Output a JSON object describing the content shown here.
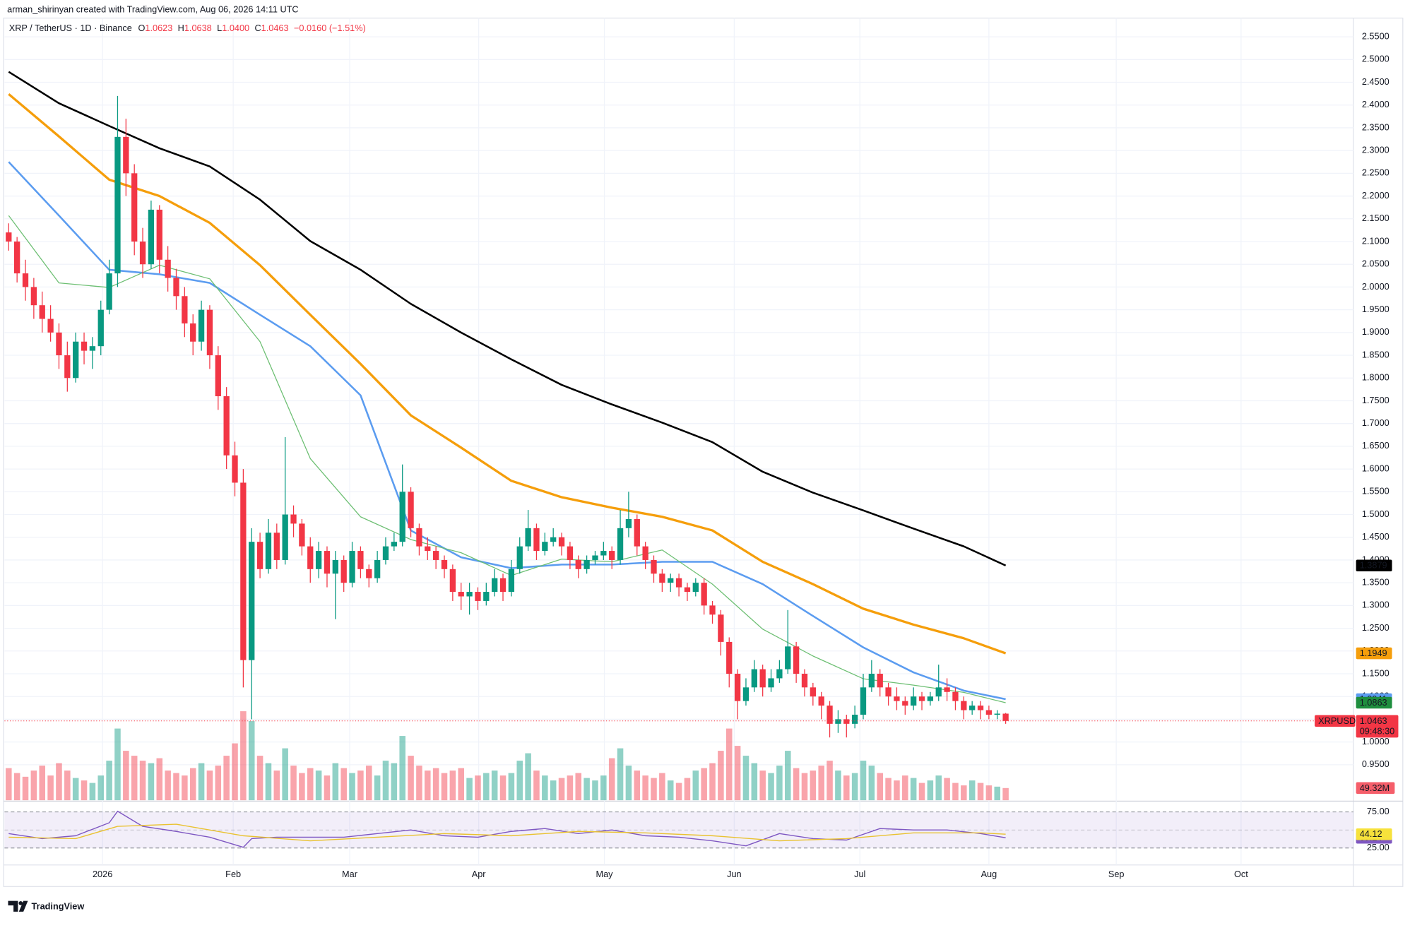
{
  "header": {
    "attribution": "arman_shirinyan created with TradingView.com, Aug 06, 2026 14:11 UTC",
    "symbol": "XRP / TetherUS · 1D · Binance",
    "ohlc": [
      {
        "key": "O",
        "text": "1.0623"
      },
      {
        "key": "H",
        "text": "1.0638"
      },
      {
        "key": "L",
        "text": "1.0400"
      },
      {
        "key": "C",
        "text": "1.0463"
      }
    ],
    "change": "−0.0160 (−1.51%)"
  },
  "footer": {
    "logo": "TradingView"
  },
  "chart_data": {
    "type": "candlestick",
    "candles": [
      [
        2.12,
        2.14,
        2.08,
        2.1
      ],
      [
        2.1,
        2.11,
        2.01,
        2.03
      ],
      [
        2.03,
        2.06,
        1.97,
        2.0
      ],
      [
        2.0,
        2.02,
        1.93,
        1.96
      ],
      [
        1.96,
        1.99,
        1.9,
        1.93
      ],
      [
        1.93,
        1.96,
        1.88,
        1.9
      ],
      [
        1.9,
        1.92,
        1.82,
        1.85
      ],
      [
        1.85,
        1.88,
        1.77,
        1.8
      ],
      [
        1.8,
        1.9,
        1.79,
        1.88
      ],
      [
        1.88,
        1.9,
        1.83,
        1.86
      ],
      [
        1.86,
        1.89,
        1.82,
        1.87
      ],
      [
        1.87,
        1.97,
        1.85,
        1.95
      ],
      [
        1.95,
        2.06,
        1.94,
        2.03
      ],
      [
        2.03,
        2.42,
        2.0,
        2.33
      ],
      [
        2.33,
        2.37,
        2.2,
        2.25
      ],
      [
        2.25,
        2.27,
        2.07,
        2.1
      ],
      [
        2.1,
        2.13,
        2.02,
        2.05
      ],
      [
        2.05,
        2.19,
        2.04,
        2.17
      ],
      [
        2.17,
        2.18,
        2.03,
        2.06
      ],
      [
        2.06,
        2.09,
        1.99,
        2.02
      ],
      [
        2.02,
        2.04,
        1.95,
        1.98
      ],
      [
        1.98,
        2.0,
        1.89,
        1.92
      ],
      [
        1.92,
        1.94,
        1.85,
        1.88
      ],
      [
        1.88,
        1.97,
        1.86,
        1.95
      ],
      [
        1.95,
        1.96,
        1.82,
        1.85
      ],
      [
        1.85,
        1.87,
        1.73,
        1.76
      ],
      [
        1.76,
        1.78,
        1.6,
        1.63
      ],
      [
        1.63,
        1.66,
        1.54,
        1.57
      ],
      [
        1.57,
        1.6,
        1.12,
        1.18
      ],
      [
        1.18,
        1.47,
        1.05,
        1.44
      ],
      [
        1.44,
        1.46,
        1.36,
        1.38
      ],
      [
        1.38,
        1.49,
        1.37,
        1.46
      ],
      [
        1.46,
        1.48,
        1.38,
        1.4
      ],
      [
        1.4,
        1.67,
        1.39,
        1.5
      ],
      [
        1.5,
        1.52,
        1.45,
        1.48
      ],
      [
        1.48,
        1.49,
        1.41,
        1.43
      ],
      [
        1.43,
        1.45,
        1.35,
        1.38
      ],
      [
        1.38,
        1.44,
        1.36,
        1.42
      ],
      [
        1.42,
        1.43,
        1.34,
        1.37
      ],
      [
        1.37,
        1.42,
        1.27,
        1.4
      ],
      [
        1.4,
        1.41,
        1.33,
        1.35
      ],
      [
        1.35,
        1.44,
        1.34,
        1.42
      ],
      [
        1.42,
        1.43,
        1.36,
        1.38
      ],
      [
        1.38,
        1.39,
        1.34,
        1.36
      ],
      [
        1.36,
        1.42,
        1.35,
        1.4
      ],
      [
        1.4,
        1.45,
        1.39,
        1.43
      ],
      [
        1.43,
        1.46,
        1.42,
        1.44
      ],
      [
        1.44,
        1.61,
        1.43,
        1.55
      ],
      [
        1.55,
        1.56,
        1.45,
        1.47
      ],
      [
        1.47,
        1.48,
        1.41,
        1.43
      ],
      [
        1.43,
        1.45,
        1.4,
        1.42
      ],
      [
        1.42,
        1.43,
        1.38,
        1.4
      ],
      [
        1.4,
        1.41,
        1.36,
        1.38
      ],
      [
        1.38,
        1.39,
        1.31,
        1.33
      ],
      [
        1.33,
        1.35,
        1.29,
        1.32
      ],
      [
        1.32,
        1.35,
        1.28,
        1.33
      ],
      [
        1.33,
        1.34,
        1.29,
        1.31
      ],
      [
        1.31,
        1.35,
        1.3,
        1.33
      ],
      [
        1.33,
        1.38,
        1.32,
        1.36
      ],
      [
        1.36,
        1.37,
        1.31,
        1.33
      ],
      [
        1.33,
        1.4,
        1.32,
        1.38
      ],
      [
        1.38,
        1.45,
        1.37,
        1.43
      ],
      [
        1.43,
        1.51,
        1.42,
        1.47
      ],
      [
        1.47,
        1.48,
        1.4,
        1.42
      ],
      [
        1.42,
        1.46,
        1.41,
        1.44
      ],
      [
        1.44,
        1.47,
        1.43,
        1.45
      ],
      [
        1.45,
        1.46,
        1.41,
        1.43
      ],
      [
        1.43,
        1.44,
        1.38,
        1.4
      ],
      [
        1.4,
        1.41,
        1.36,
        1.38
      ],
      [
        1.38,
        1.41,
        1.37,
        1.4
      ],
      [
        1.4,
        1.42,
        1.39,
        1.41
      ],
      [
        1.41,
        1.44,
        1.4,
        1.42
      ],
      [
        1.42,
        1.43,
        1.38,
        1.4
      ],
      [
        1.4,
        1.51,
        1.39,
        1.47
      ],
      [
        1.47,
        1.55,
        1.45,
        1.49
      ],
      [
        1.49,
        1.5,
        1.41,
        1.43
      ],
      [
        1.43,
        1.44,
        1.38,
        1.4
      ],
      [
        1.4,
        1.41,
        1.35,
        1.37
      ],
      [
        1.37,
        1.38,
        1.33,
        1.35
      ],
      [
        1.35,
        1.37,
        1.33,
        1.36
      ],
      [
        1.36,
        1.37,
        1.32,
        1.34
      ],
      [
        1.34,
        1.35,
        1.31,
        1.33
      ],
      [
        1.33,
        1.36,
        1.32,
        1.35
      ],
      [
        1.35,
        1.36,
        1.28,
        1.3
      ],
      [
        1.3,
        1.31,
        1.26,
        1.28
      ],
      [
        1.28,
        1.29,
        1.19,
        1.22
      ],
      [
        1.22,
        1.23,
        1.12,
        1.15
      ],
      [
        1.15,
        1.16,
        1.05,
        1.09
      ],
      [
        1.09,
        1.14,
        1.08,
        1.12
      ],
      [
        1.12,
        1.18,
        1.11,
        1.16
      ],
      [
        1.16,
        1.17,
        1.1,
        1.12
      ],
      [
        1.12,
        1.16,
        1.11,
        1.14
      ],
      [
        1.14,
        1.18,
        1.13,
        1.16
      ],
      [
        1.16,
        1.29,
        1.15,
        1.21
      ],
      [
        1.21,
        1.22,
        1.13,
        1.15
      ],
      [
        1.15,
        1.16,
        1.1,
        1.12
      ],
      [
        1.12,
        1.13,
        1.08,
        1.1
      ],
      [
        1.1,
        1.11,
        1.05,
        1.08
      ],
      [
        1.08,
        1.09,
        1.01,
        1.04
      ],
      [
        1.04,
        1.07,
        1.02,
        1.05
      ],
      [
        1.05,
        1.06,
        1.01,
        1.04
      ],
      [
        1.04,
        1.08,
        1.03,
        1.06
      ],
      [
        1.06,
        1.15,
        1.05,
        1.12
      ],
      [
        1.12,
        1.18,
        1.11,
        1.15
      ],
      [
        1.15,
        1.16,
        1.1,
        1.12
      ],
      [
        1.12,
        1.13,
        1.08,
        1.1
      ],
      [
        1.1,
        1.12,
        1.07,
        1.09
      ],
      [
        1.09,
        1.1,
        1.06,
        1.08
      ],
      [
        1.08,
        1.12,
        1.07,
        1.1
      ],
      [
        1.1,
        1.11,
        1.07,
        1.09
      ],
      [
        1.09,
        1.11,
        1.08,
        1.1
      ],
      [
        1.1,
        1.17,
        1.09,
        1.12
      ],
      [
        1.12,
        1.14,
        1.09,
        1.11
      ],
      [
        1.11,
        1.12,
        1.07,
        1.09
      ],
      [
        1.09,
        1.1,
        1.05,
        1.07
      ],
      [
        1.07,
        1.09,
        1.06,
        1.08
      ],
      [
        1.08,
        1.09,
        1.05,
        1.07
      ],
      [
        1.07,
        1.08,
        1.05,
        1.06
      ],
      [
        1.06,
        1.07,
        1.05,
        1.0623
      ],
      [
        1.0623,
        1.0638,
        1.04,
        1.0463
      ]
    ],
    "up_color": "#089981",
    "down_color": "#f23645",
    "volume": [
      130,
      110,
      95,
      120,
      140,
      100,
      150,
      120,
      90,
      80,
      70,
      100,
      160,
      290,
      200,
      180,
      160,
      150,
      170,
      120,
      110,
      100,
      130,
      150,
      120,
      140,
      180,
      230,
      360,
      320,
      180,
      150,
      120,
      210,
      140,
      110,
      130,
      120,
      100,
      150,
      130,
      110,
      120,
      140,
      100,
      160,
      150,
      260,
      180,
      140,
      120,
      130,
      110,
      120,
      130,
      90,
      100,
      110,
      120,
      100,
      110,
      160,
      190,
      120,
      100,
      80,
      90,
      100,
      110,
      90,
      80,
      100,
      170,
      210,
      140,
      120,
      100,
      90,
      110,
      80,
      70,
      90,
      120,
      130,
      150,
      200,
      290,
      220,
      180,
      150,
      120,
      110,
      140,
      200,
      130,
      110,
      120,
      140,
      160,
      120,
      100,
      110,
      160,
      140,
      110,
      90,
      80,
      100,
      90,
      70,
      80,
      100,
      90,
      70,
      60,
      80,
      70,
      60,
      55,
      49.32
    ],
    "volume_lim": [
      0,
      400
    ],
    "volume_tag_label": "49.32M",
    "symbol_tag": "XRPUSDT",
    "countdown": "09:48:30",
    "ylim": [
      0.872,
      2.601
    ],
    "yticks": [
      {
        "value": 0.95,
        "label": "0.9500"
      },
      {
        "value": 1.0,
        "label": "1.0000"
      },
      {
        "value": 1.05,
        "label": "1.0500"
      },
      {
        "value": 1.1,
        "label": "1.1000"
      },
      {
        "value": 1.15,
        "label": "1.1500"
      },
      {
        "value": 1.2,
        "label": "1.2000"
      },
      {
        "value": 1.25,
        "label": "1.2500"
      },
      {
        "value": 1.3,
        "label": "1.3000"
      },
      {
        "value": 1.35,
        "label": "1.3500"
      },
      {
        "value": 1.4,
        "label": "1.4000"
      },
      {
        "value": 1.45,
        "label": "1.4500"
      },
      {
        "value": 1.5,
        "label": "1.5000"
      },
      {
        "value": 1.55,
        "label": "1.5500"
      },
      {
        "value": 1.6,
        "label": "1.6000"
      },
      {
        "value": 1.65,
        "label": "1.6500"
      },
      {
        "value": 1.7,
        "label": "1.7000"
      },
      {
        "value": 1.75,
        "label": "1.7500"
      },
      {
        "value": 1.8,
        "label": "1.8000"
      },
      {
        "value": 1.85,
        "label": "1.8500"
      },
      {
        "value": 1.9,
        "label": "1.9000"
      },
      {
        "value": 1.95,
        "label": "1.9500"
      },
      {
        "value": 2.0,
        "label": "2.0000"
      },
      {
        "value": 2.05,
        "label": "2.0500"
      },
      {
        "value": 2.1,
        "label": "2.1000"
      },
      {
        "value": 2.15,
        "label": "2.1500"
      },
      {
        "value": 2.2,
        "label": "2.2000"
      },
      {
        "value": 2.25,
        "label": "2.2500"
      },
      {
        "value": 2.3,
        "label": "2.3000"
      },
      {
        "value": 2.35,
        "label": "2.3500"
      },
      {
        "value": 2.4,
        "label": "2.4000"
      },
      {
        "value": 2.45,
        "label": "2.4500"
      },
      {
        "value": 2.5,
        "label": "2.5000"
      },
      {
        "value": 2.55,
        "label": "2.5500"
      }
    ],
    "xlim": [
      -0.5,
      160.5
    ],
    "xticks": [
      {
        "value": 11.2,
        "label": "2026"
      },
      {
        "value": 26.8,
        "label": "Feb"
      },
      {
        "value": 40.7,
        "label": "Mar"
      },
      {
        "value": 56.1,
        "label": "Apr"
      },
      {
        "value": 71.1,
        "label": "May"
      },
      {
        "value": 86.6,
        "label": "Jun"
      },
      {
        "value": 101.6,
        "label": "Jul"
      },
      {
        "value": 117,
        "label": "Aug"
      },
      {
        "value": 132.2,
        "label": "Sep"
      },
      {
        "value": 147.1,
        "label": "Oct"
      }
    ],
    "grid": true,
    "series": [
      {
        "color": "#000000",
        "tag_color": "#000000",
        "width": 2,
        "x": [
          0,
          6,
          12,
          18,
          24,
          30,
          36,
          42,
          48,
          54,
          60,
          66,
          72,
          78,
          84,
          90,
          96,
          102,
          108,
          114,
          119
        ],
        "values": [
          2.473,
          2.404,
          2.354,
          2.305,
          2.265,
          2.192,
          2.101,
          2.038,
          1.963,
          1.9,
          1.841,
          1.785,
          1.742,
          1.702,
          1.659,
          1.594,
          1.548,
          1.509,
          1.469,
          1.43,
          1.3879
        ]
      },
      {
        "color": "#f59e0b",
        "tag_color": "#f59e0b",
        "width": 2.6,
        "x": [
          0,
          6,
          12,
          18,
          24,
          30,
          36,
          42,
          48,
          54,
          60,
          66,
          72,
          78,
          84,
          90,
          96,
          102,
          108,
          114,
          119
        ],
        "values": [
          2.424,
          2.331,
          2.236,
          2.2,
          2.141,
          2.048,
          1.939,
          1.831,
          1.718,
          1.647,
          1.574,
          1.538,
          1.515,
          1.495,
          1.465,
          1.396,
          1.347,
          1.293,
          1.258,
          1.228,
          1.1949
        ]
      },
      {
        "color": "#5b9cf0",
        "tag_color": "#5b9cf0",
        "width": 2,
        "x": [
          0,
          6,
          12,
          18,
          24,
          30,
          36,
          42,
          48,
          54,
          60,
          66,
          72,
          78,
          84,
          90,
          96,
          102,
          108,
          114,
          119
        ],
        "values": [
          2.275,
          2.157,
          2.038,
          2.028,
          2.009,
          1.939,
          1.87,
          1.762,
          1.465,
          1.406,
          1.382,
          1.39,
          1.39,
          1.396,
          1.396,
          1.347,
          1.277,
          1.208,
          1.153,
          1.113,
          1.0941
        ]
      },
      {
        "color": "#6dbf73",
        "tag_color": "#1e8e3e",
        "width": 1,
        "x": [
          0,
          6,
          12,
          18,
          24,
          30,
          36,
          42,
          48,
          54,
          60,
          66,
          72,
          78,
          84,
          90,
          96,
          102,
          108,
          114,
          119
        ],
        "values": [
          2.157,
          2.009,
          1.999,
          2.048,
          2.018,
          1.88,
          1.623,
          1.495,
          1.445,
          1.416,
          1.366,
          1.402,
          1.396,
          1.422,
          1.347,
          1.248,
          1.189,
          1.139,
          1.125,
          1.109,
          1.0863
        ]
      }
    ],
    "rsi": {
      "ylim": [
        4,
        87.5
      ],
      "yticks": [
        {
          "value": 75,
          "label": "75.00"
        },
        {
          "value": 25,
          "label": "25.00"
        }
      ],
      "midline": 50,
      "band_color": "#7e57c2",
      "series": [
        {
          "color": "#7e57c2",
          "x": [
            0,
            4,
            8,
            12,
            13,
            16,
            20,
            24,
            28,
            29,
            32,
            36,
            40,
            44,
            48,
            52,
            56,
            60,
            64,
            68,
            72,
            76,
            80,
            84,
            88,
            92,
            96,
            100,
            104,
            108,
            112,
            116,
            119
          ],
          "values": [
            45,
            38,
            42,
            60,
            76,
            55,
            48,
            40,
            26,
            38,
            40,
            40,
            40,
            45,
            50,
            42,
            40,
            48,
            52,
            45,
            50,
            42,
            40,
            35,
            28,
            45,
            38,
            36,
            52,
            50,
            50,
            45,
            39.24
          ]
        },
        {
          "color": "#e9c230",
          "tag_color": "#f7e23b",
          "x": [
            0,
            8,
            13,
            20,
            28,
            36,
            44,
            52,
            60,
            68,
            76,
            84,
            92,
            100,
            108,
            116,
            119
          ],
          "values": [
            40,
            38,
            55,
            58,
            42,
            35,
            40,
            45,
            42,
            48,
            46,
            42,
            35,
            38,
            46,
            46,
            44.12
          ]
        }
      ]
    }
  }
}
